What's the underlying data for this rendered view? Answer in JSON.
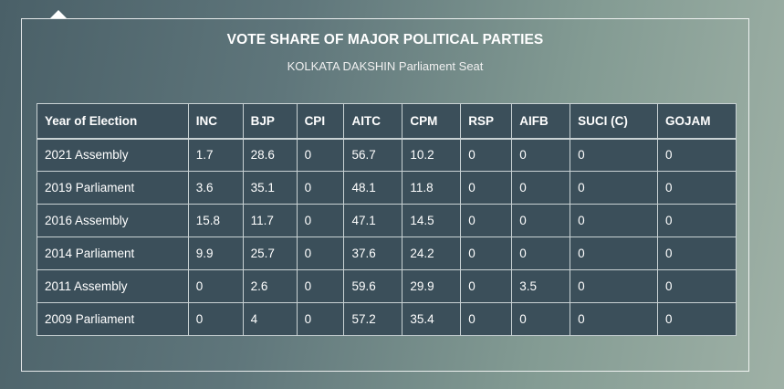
{
  "header": {
    "title": "VOTE SHARE OF MAJOR POLITICAL PARTIES",
    "subtitle": "KOLKATA DAKSHIN Parliament Seat"
  },
  "table": {
    "columns": [
      "Year of Election",
      "INC",
      "BJP",
      "CPI",
      "AITC",
      "CPM",
      "RSP",
      "AIFB",
      "SUCI (C)",
      "GOJAM"
    ],
    "rows": [
      [
        "2021 Assembly",
        "1.7",
        "28.6",
        "0",
        "56.7",
        "10.2",
        "0",
        "0",
        "0",
        "0"
      ],
      [
        "2019 Parliament",
        "3.6",
        "35.1",
        "0",
        "48.1",
        "11.8",
        "0",
        "0",
        "0",
        "0"
      ],
      [
        "2016 Assembly",
        "15.8",
        "11.7",
        "0",
        "47.1",
        "14.5",
        "0",
        "0",
        "0",
        "0"
      ],
      [
        "2014 Parliament",
        "9.9",
        "25.7",
        "0",
        "37.6",
        "24.2",
        "0",
        "0",
        "0",
        "0"
      ],
      [
        "2011 Assembly",
        "0",
        "2.6",
        "0",
        "59.6",
        "29.9",
        "0",
        "3.5",
        "0",
        "0"
      ],
      [
        "2009 Parliament",
        "0",
        "4",
        "0",
        "57.2",
        "35.4",
        "0",
        "0",
        "0",
        "0"
      ]
    ]
  },
  "colors": {
    "table_background": "#3b4f5a",
    "border": "#c9d2d4",
    "text": "#ffffff"
  }
}
